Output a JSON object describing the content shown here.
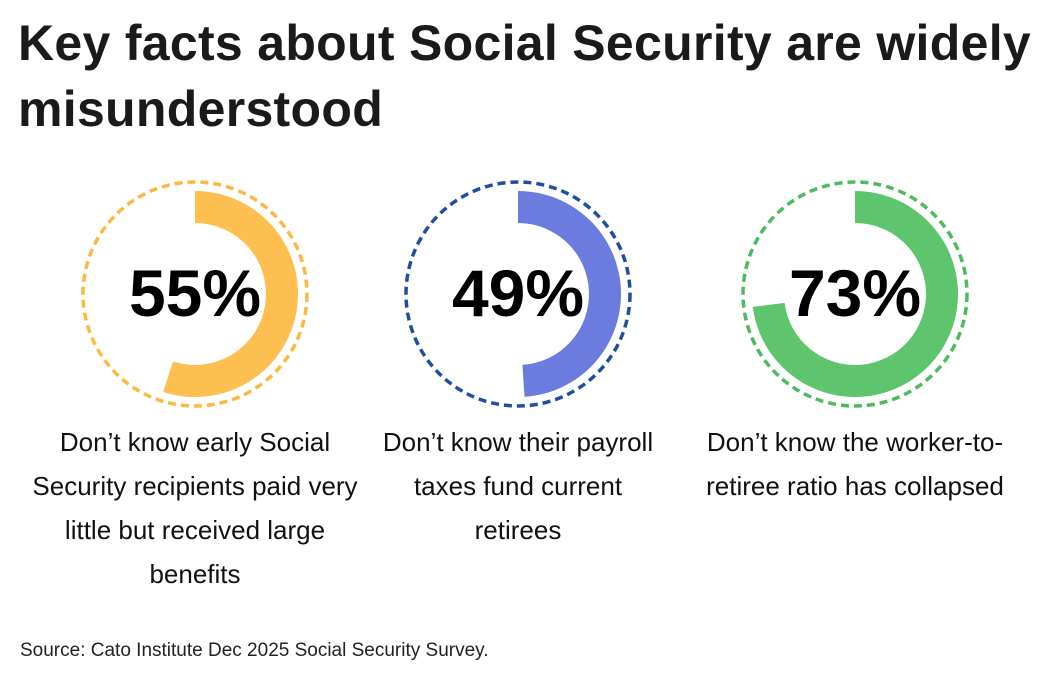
{
  "title": "Key facts about Social Security are widely misunderstood",
  "source": "Source: Cato Institute Dec 2025 Social Security Survey.",
  "chart_data": {
    "type": "donut",
    "title": "Key facts about Social Security are widely misunderstood",
    "unit": "%",
    "items": [
      {
        "label": "55%",
        "value": 55,
        "caption": "Don’t know early Social Security recipients paid very little but received large benefits",
        "color": "#FDBF50",
        "ring_color": "#FBB93F"
      },
      {
        "label": "49%",
        "value": 49,
        "caption": "Don’t know their payroll taxes fund current retirees",
        "color": "#6B7BDE",
        "ring_color": "#1F4E9E"
      },
      {
        "label": "73%",
        "value": 73,
        "caption": "Don’t know the worker-to-retiree ratio has collapsed",
        "color": "#5EC46E",
        "ring_color": "#4CBB5E"
      }
    ]
  }
}
